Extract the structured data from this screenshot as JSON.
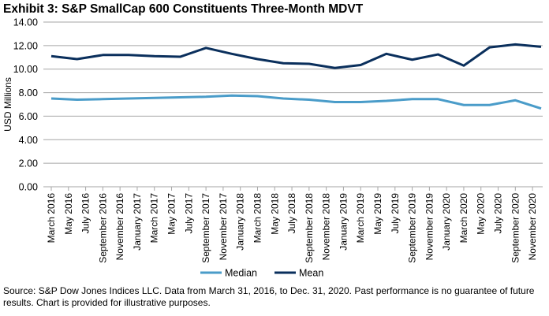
{
  "title": "Exhibit 3: S&P SmallCap 600 Constituents Three-Month MDVT",
  "source": "Source: S&P Dow Jones Indices LLC. Data from March 31, 2016, to Dec. 31, 2020. Past performance is no guarantee of future results. Chart is provided for illustrative purposes.",
  "chart_data": {
    "type": "line",
    "title": "Exhibit 3: S&P SmallCap 600 Constituents Three-Month MDVT",
    "ylabel": "USD Millions",
    "xlabel": "",
    "ylim": [
      0,
      14
    ],
    "yticks": [
      "0.00",
      "2.00",
      "4.00",
      "6.00",
      "8.00",
      "10.00",
      "12.00",
      "14.00"
    ],
    "grid": true,
    "legend_placement": "bottom",
    "xtick_labels": [
      "March 2016",
      "May 2016",
      "July 2016",
      "September 2016",
      "November 2016",
      "January 2017",
      "March 2017",
      "May 2017",
      "July 2017",
      "September 2017",
      "November 2017",
      "January 2018",
      "March 2018",
      "May 2018",
      "July 2018",
      "September 2018",
      "November 2018",
      "January 2019",
      "March 2019",
      "May 2019",
      "July 2019",
      "September 2019",
      "November 2019",
      "January 2020",
      "March 2020",
      "May 2020",
      "July 2020",
      "September 2020",
      "November 2020"
    ],
    "x": [
      "2016-03",
      "2016-06",
      "2016-09",
      "2016-12",
      "2017-03",
      "2017-06",
      "2017-09",
      "2017-12",
      "2018-03",
      "2018-06",
      "2018-09",
      "2018-12",
      "2019-03",
      "2019-06",
      "2019-09",
      "2019-12",
      "2020-03",
      "2020-06",
      "2020-09",
      "2020-12"
    ],
    "series": [
      {
        "name": "Median",
        "color": "#4a9cc9",
        "values": [
          7.5,
          7.4,
          7.45,
          7.5,
          7.55,
          7.6,
          7.65,
          7.75,
          7.7,
          7.5,
          7.4,
          7.2,
          7.2,
          7.3,
          7.45,
          7.45,
          6.95,
          6.95,
          7.35,
          6.65
        ]
      },
      {
        "name": "Mean",
        "color": "#0a2f5c",
        "values": [
          11.1,
          10.85,
          11.2,
          11.2,
          11.1,
          11.05,
          11.8,
          11.3,
          10.85,
          10.5,
          10.45,
          10.1,
          10.35,
          11.3,
          10.8,
          11.25,
          10.3,
          11.85,
          12.1,
          11.9
        ]
      }
    ]
  }
}
